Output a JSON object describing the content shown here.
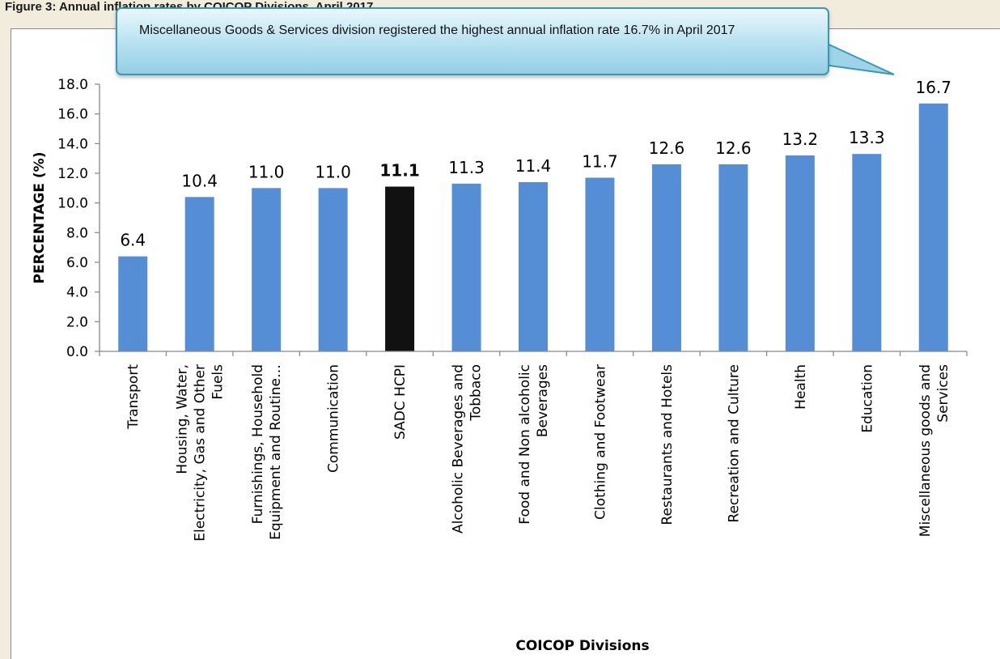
{
  "header": {
    "title": "Figure 3: Annual inflation rates by COICOP Divisions, April 2017"
  },
  "callout": {
    "text": "Miscellaneous Goods & Services division registered the highest annual inflation rate 16.7% in April 2017"
  },
  "chart_data": {
    "type": "bar",
    "categories": [
      "Transport",
      "Housing, Water, Electricity, Gas and Other Fuels",
      "Furnishings, Household Equipment and Routine…",
      "Communication",
      "SADC HCPI",
      "Alcoholic Beverages and Tobbaco",
      "Food and Non alcoholic Beverages",
      "Clothing and Footwear",
      "Restaurants and Hotels",
      "Recreation and Culture",
      "Health",
      "Education",
      "Miscellaneous goods and Services"
    ],
    "values": [
      6.4,
      10.4,
      11.0,
      11.0,
      11.1,
      11.3,
      11.4,
      11.7,
      12.6,
      12.6,
      13.2,
      13.3,
      16.7
    ],
    "value_labels": [
      "6.4",
      "10.4",
      "11.0",
      "11.0",
      "11.1",
      "11.3",
      "11.4",
      "11.7",
      "12.6",
      "12.6",
      "13.2",
      "13.3",
      "16.7"
    ],
    "highlight_category": "SADC HCPI",
    "ylim": [
      0,
      18
    ],
    "y_ticks": [
      "0.0",
      "2.0",
      "4.0",
      "6.0",
      "8.0",
      "10.0",
      "12.0",
      "14.0",
      "16.0",
      "18.0"
    ],
    "ylabel": "PERCENTAGE (%)",
    "xlabel": "COICOP Divisions",
    "grid": false,
    "legend": "none",
    "colors": {
      "bar": "#558ed5",
      "highlight": "#111111",
      "axis": "#868686"
    }
  }
}
